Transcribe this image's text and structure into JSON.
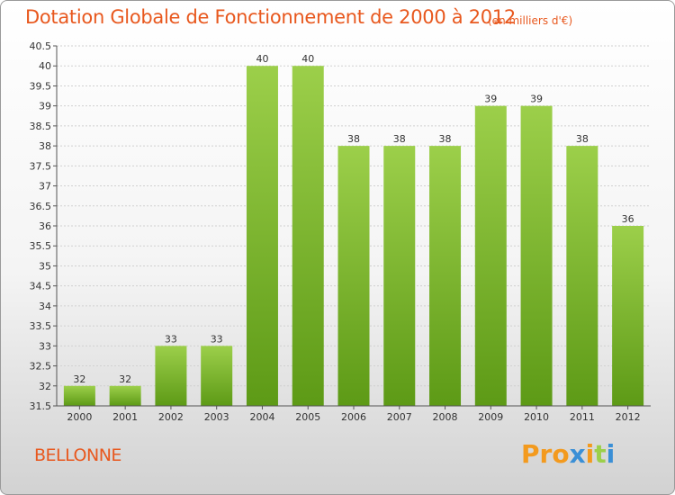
{
  "header": {
    "title": "Dotation Globale de Fonctionnement de 2000 à 2012",
    "unit": "(en milliers d'€)"
  },
  "footer": {
    "commune": "BELLONNE",
    "logo": "Proxiti"
  },
  "colors": {
    "accent": "#e8581e",
    "bar_top": "#9ccf4a",
    "bar_bottom": "#5d9a16",
    "logo_letters": [
      "#f39a1e",
      "#f39a1e",
      "#f39a1e",
      "#3a8fd6",
      "#f39a1e",
      "#9ccf4a",
      "#3a8fd6"
    ]
  },
  "chart_data": {
    "type": "bar",
    "title": "Dotation Globale de Fonctionnement de 2000 à 2012",
    "subtitle": "(en milliers d'€)",
    "categories": [
      "2000",
      "2001",
      "2002",
      "2003",
      "2004",
      "2005",
      "2006",
      "2007",
      "2008",
      "2009",
      "2010",
      "2011",
      "2012"
    ],
    "values": [
      32,
      32,
      33,
      33,
      40,
      40,
      38,
      38,
      38,
      39,
      39,
      38,
      36
    ],
    "ylim": [
      31.5,
      40.5
    ],
    "yticks": [
      "31.5",
      "32",
      "32.5",
      "33",
      "33.5",
      "34",
      "34.5",
      "35",
      "35.5",
      "36",
      "36.5",
      "37",
      "37.5",
      "38",
      "38.5",
      "39",
      "39.5",
      "40",
      "40.5"
    ],
    "grid": true,
    "legend": "none"
  }
}
